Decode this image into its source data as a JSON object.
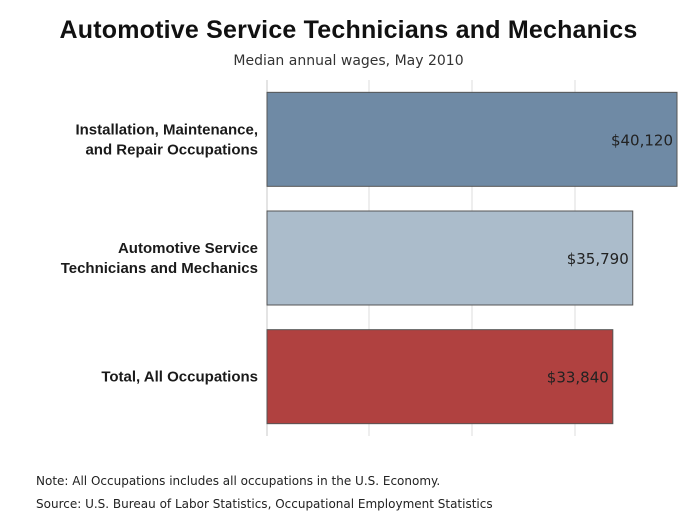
{
  "chart_data": {
    "type": "bar",
    "orientation": "horizontal",
    "title": "Automotive Service Technicians and Mechanics",
    "subtitle": "Median annual wages, May 2010",
    "categories": [
      [
        "Installation, Maintenance,",
        "and Repair Occupations"
      ],
      [
        "Automotive Service",
        "Technicians and Mechanics"
      ],
      [
        "Total, All Occupations"
      ]
    ],
    "values": [
      40120,
      35790,
      33840
    ],
    "value_labels": [
      "$40,120",
      "$35,790",
      "$33,840"
    ],
    "bar_colors": [
      "#6f8aa5",
      "#abbccb",
      "#b04140"
    ],
    "xlim": [
      0,
      40120
    ],
    "grid": true,
    "legend": "none"
  },
  "notes": {
    "note": "Note: All Occupations includes all occupations in the U.S. Economy.",
    "source": "Source: U.S. Bureau of Labor Statistics, Occupational Employment Statistics"
  }
}
